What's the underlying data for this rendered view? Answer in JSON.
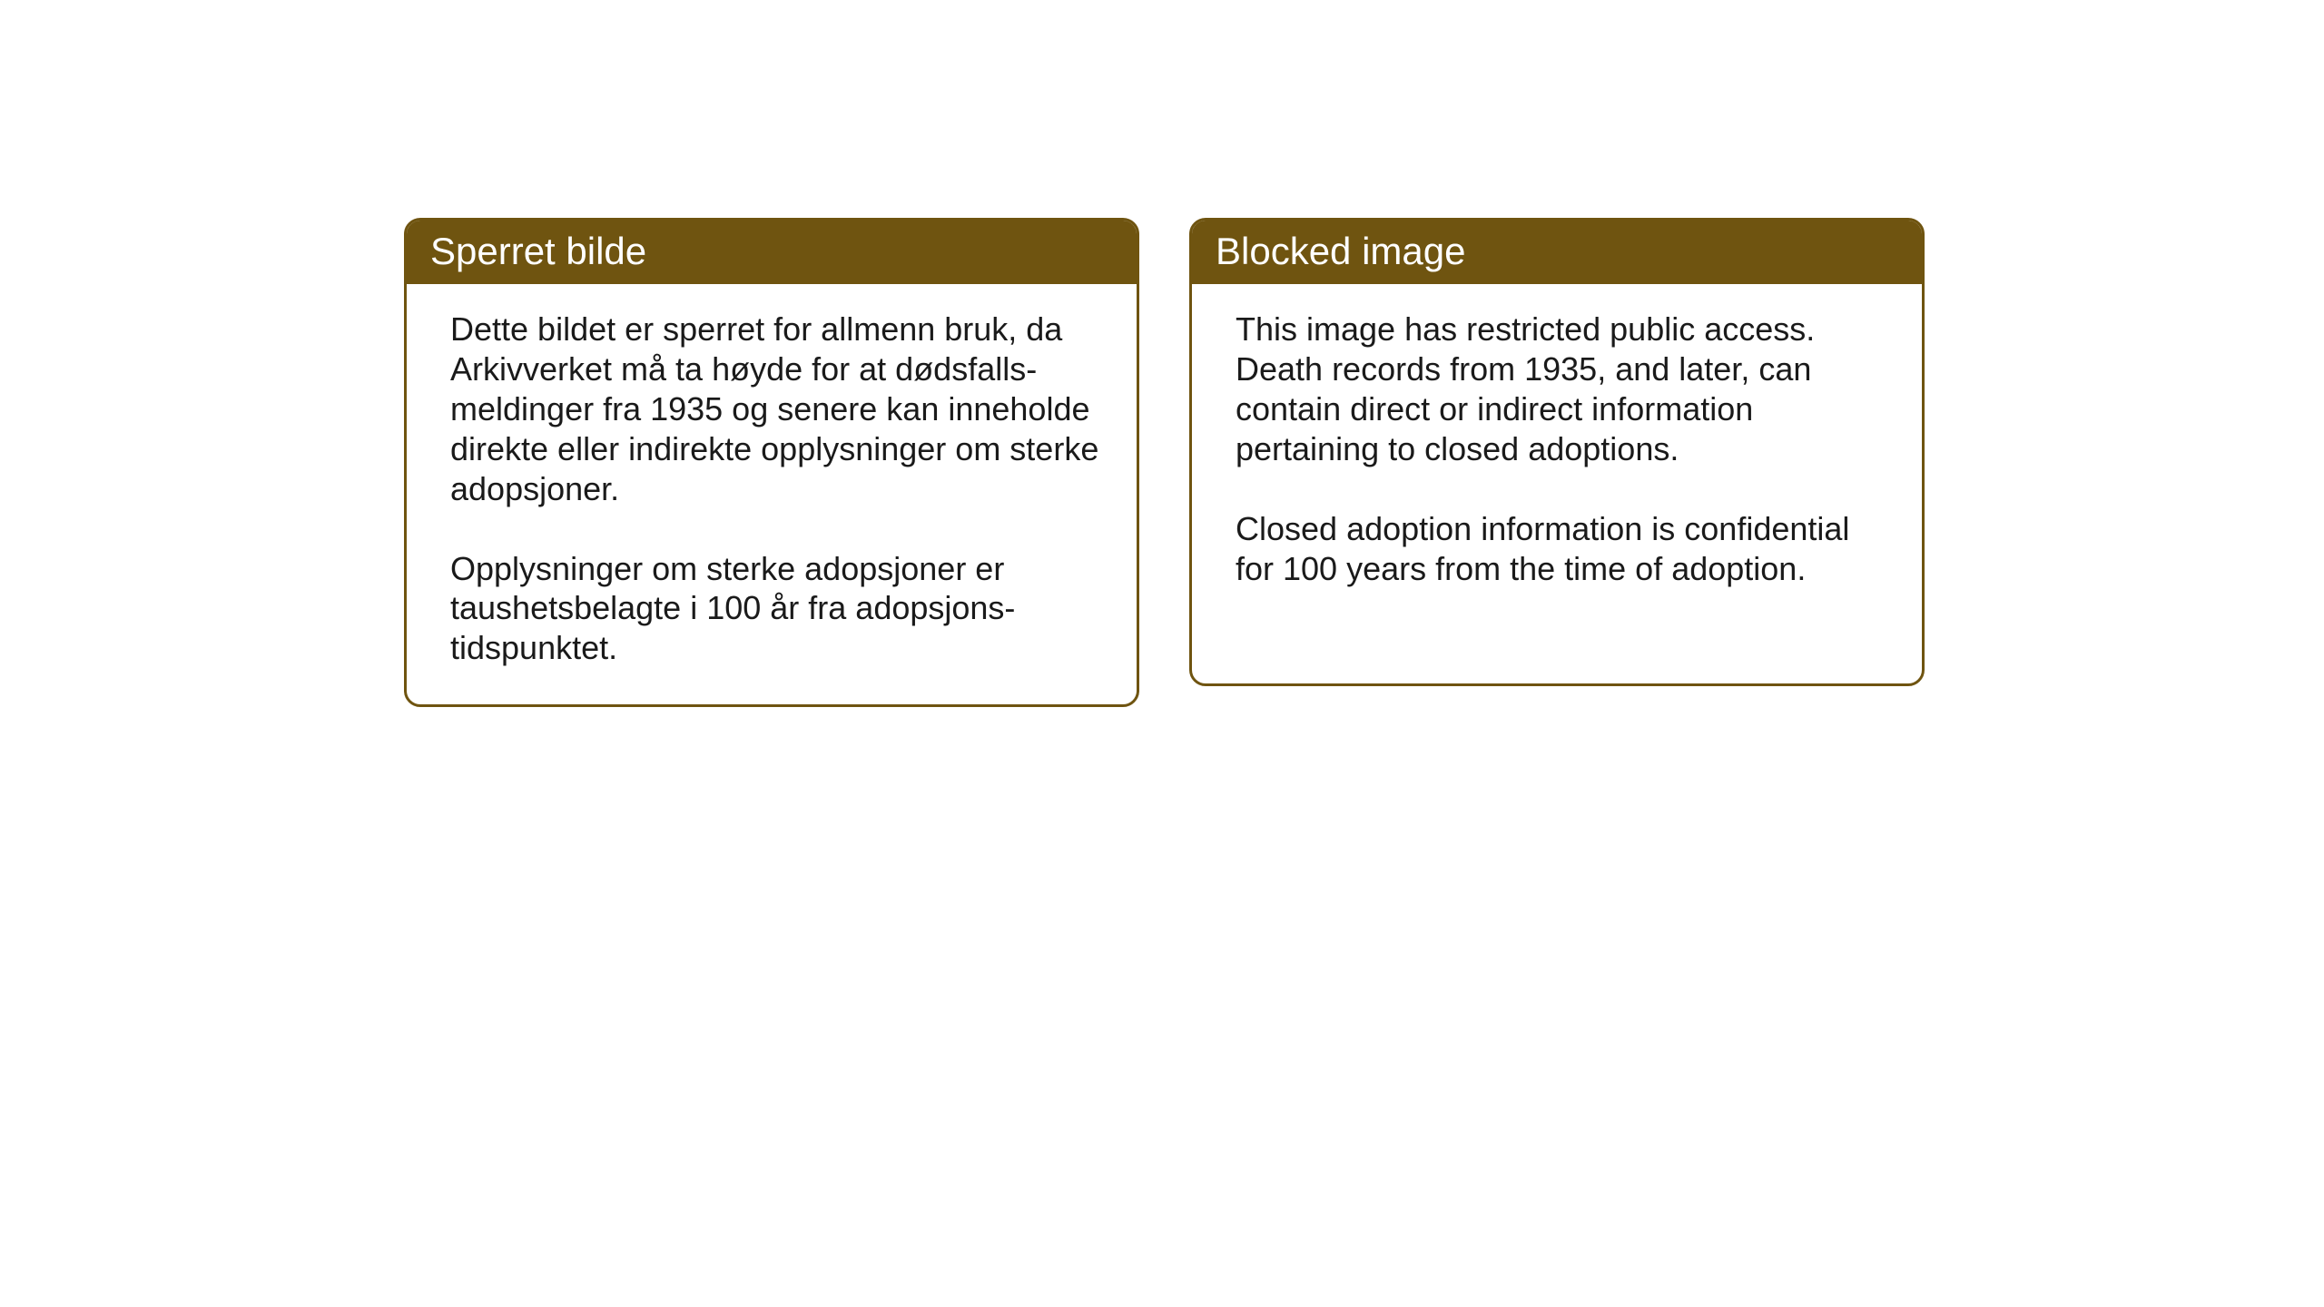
{
  "notices": {
    "left": {
      "title": "Sperret bilde",
      "paragraph1": "Dette bildet er sperret for allmenn bruk,\nda Arkivverket må ta høyde for at dødsfalls-\nmeldinger fra 1935 og senere kan inneholde direkte eller indirekte opplysninger om sterke adopsjoner.",
      "paragraph2": "Opplysninger om sterke adopsjoner er taushetsbelagte i 100 år fra adopsjons-\ntidspunktet."
    },
    "right": {
      "title": "Blocked image",
      "paragraph1": "This image has restricted public access. Death records from 1935, and later, can contain direct or indirect information pertaining to closed adoptions.",
      "paragraph2": "Closed adoption information is confidential for 100 years from the time of adoption."
    }
  },
  "styling": {
    "header_background": "#6f5410",
    "header_text_color": "#ffffff",
    "border_color": "#6f5410",
    "body_background": "#ffffff",
    "body_text_color": "#1a1a1a",
    "header_fontsize": 42,
    "body_fontsize": 36,
    "border_radius": 18,
    "border_width": 3
  }
}
